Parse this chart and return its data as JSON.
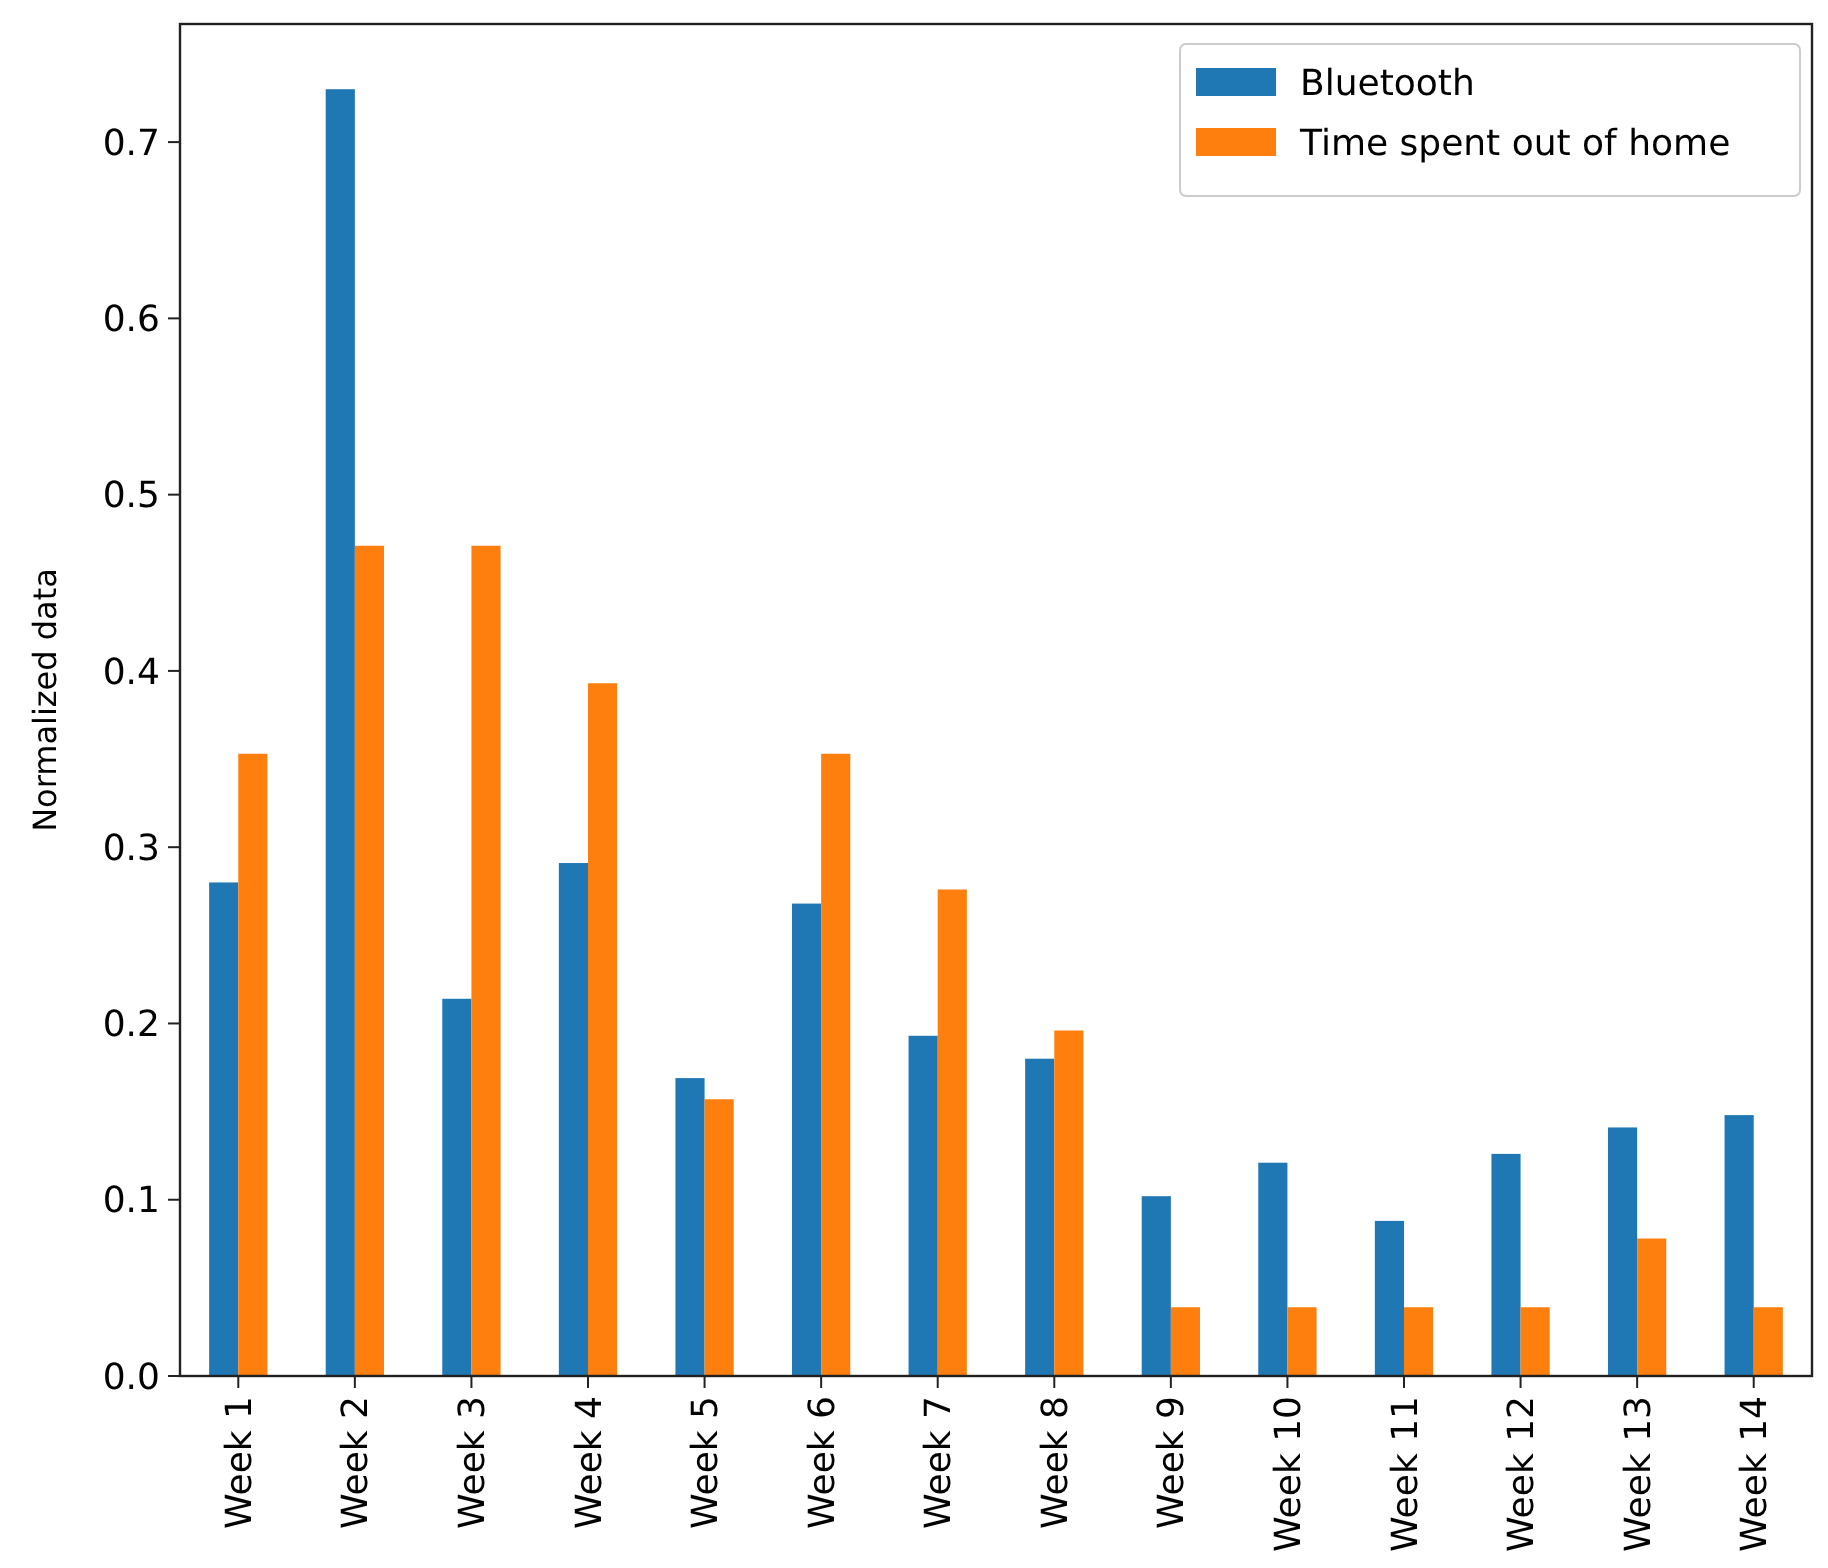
{
  "chart_data": {
    "type": "bar",
    "ylabel": "Normalized data",
    "categories": [
      "Week 1",
      "Week 2",
      "Week 3",
      "Week 4",
      "Week 5",
      "Week 6",
      "Week 7",
      "Week 8",
      "Week 9",
      "Week 10",
      "Week 11",
      "Week 12",
      "Week 13",
      "Week 14"
    ],
    "series": [
      {
        "name": "Bluetooth",
        "color": "#1f77b4",
        "values": [
          0.28,
          0.73,
          0.214,
          0.291,
          0.169,
          0.268,
          0.193,
          0.18,
          0.102,
          0.121,
          0.088,
          0.126,
          0.141,
          0.148
        ]
      },
      {
        "name": "Time spent out of home",
        "color": "#ff7f0e",
        "values": [
          0.353,
          0.471,
          0.471,
          0.393,
          0.157,
          0.353,
          0.276,
          0.196,
          0.039,
          0.039,
          0.039,
          0.039,
          0.078,
          0.039
        ]
      }
    ],
    "ylim": [
      0,
      0.767
    ],
    "yticks": [
      {
        "value": 0,
        "label": "0.0"
      },
      0.1,
      0.2,
      0.3,
      0.4,
      0.5,
      0.6,
      0.7
    ],
    "legend": "top right",
    "grid": false
  }
}
